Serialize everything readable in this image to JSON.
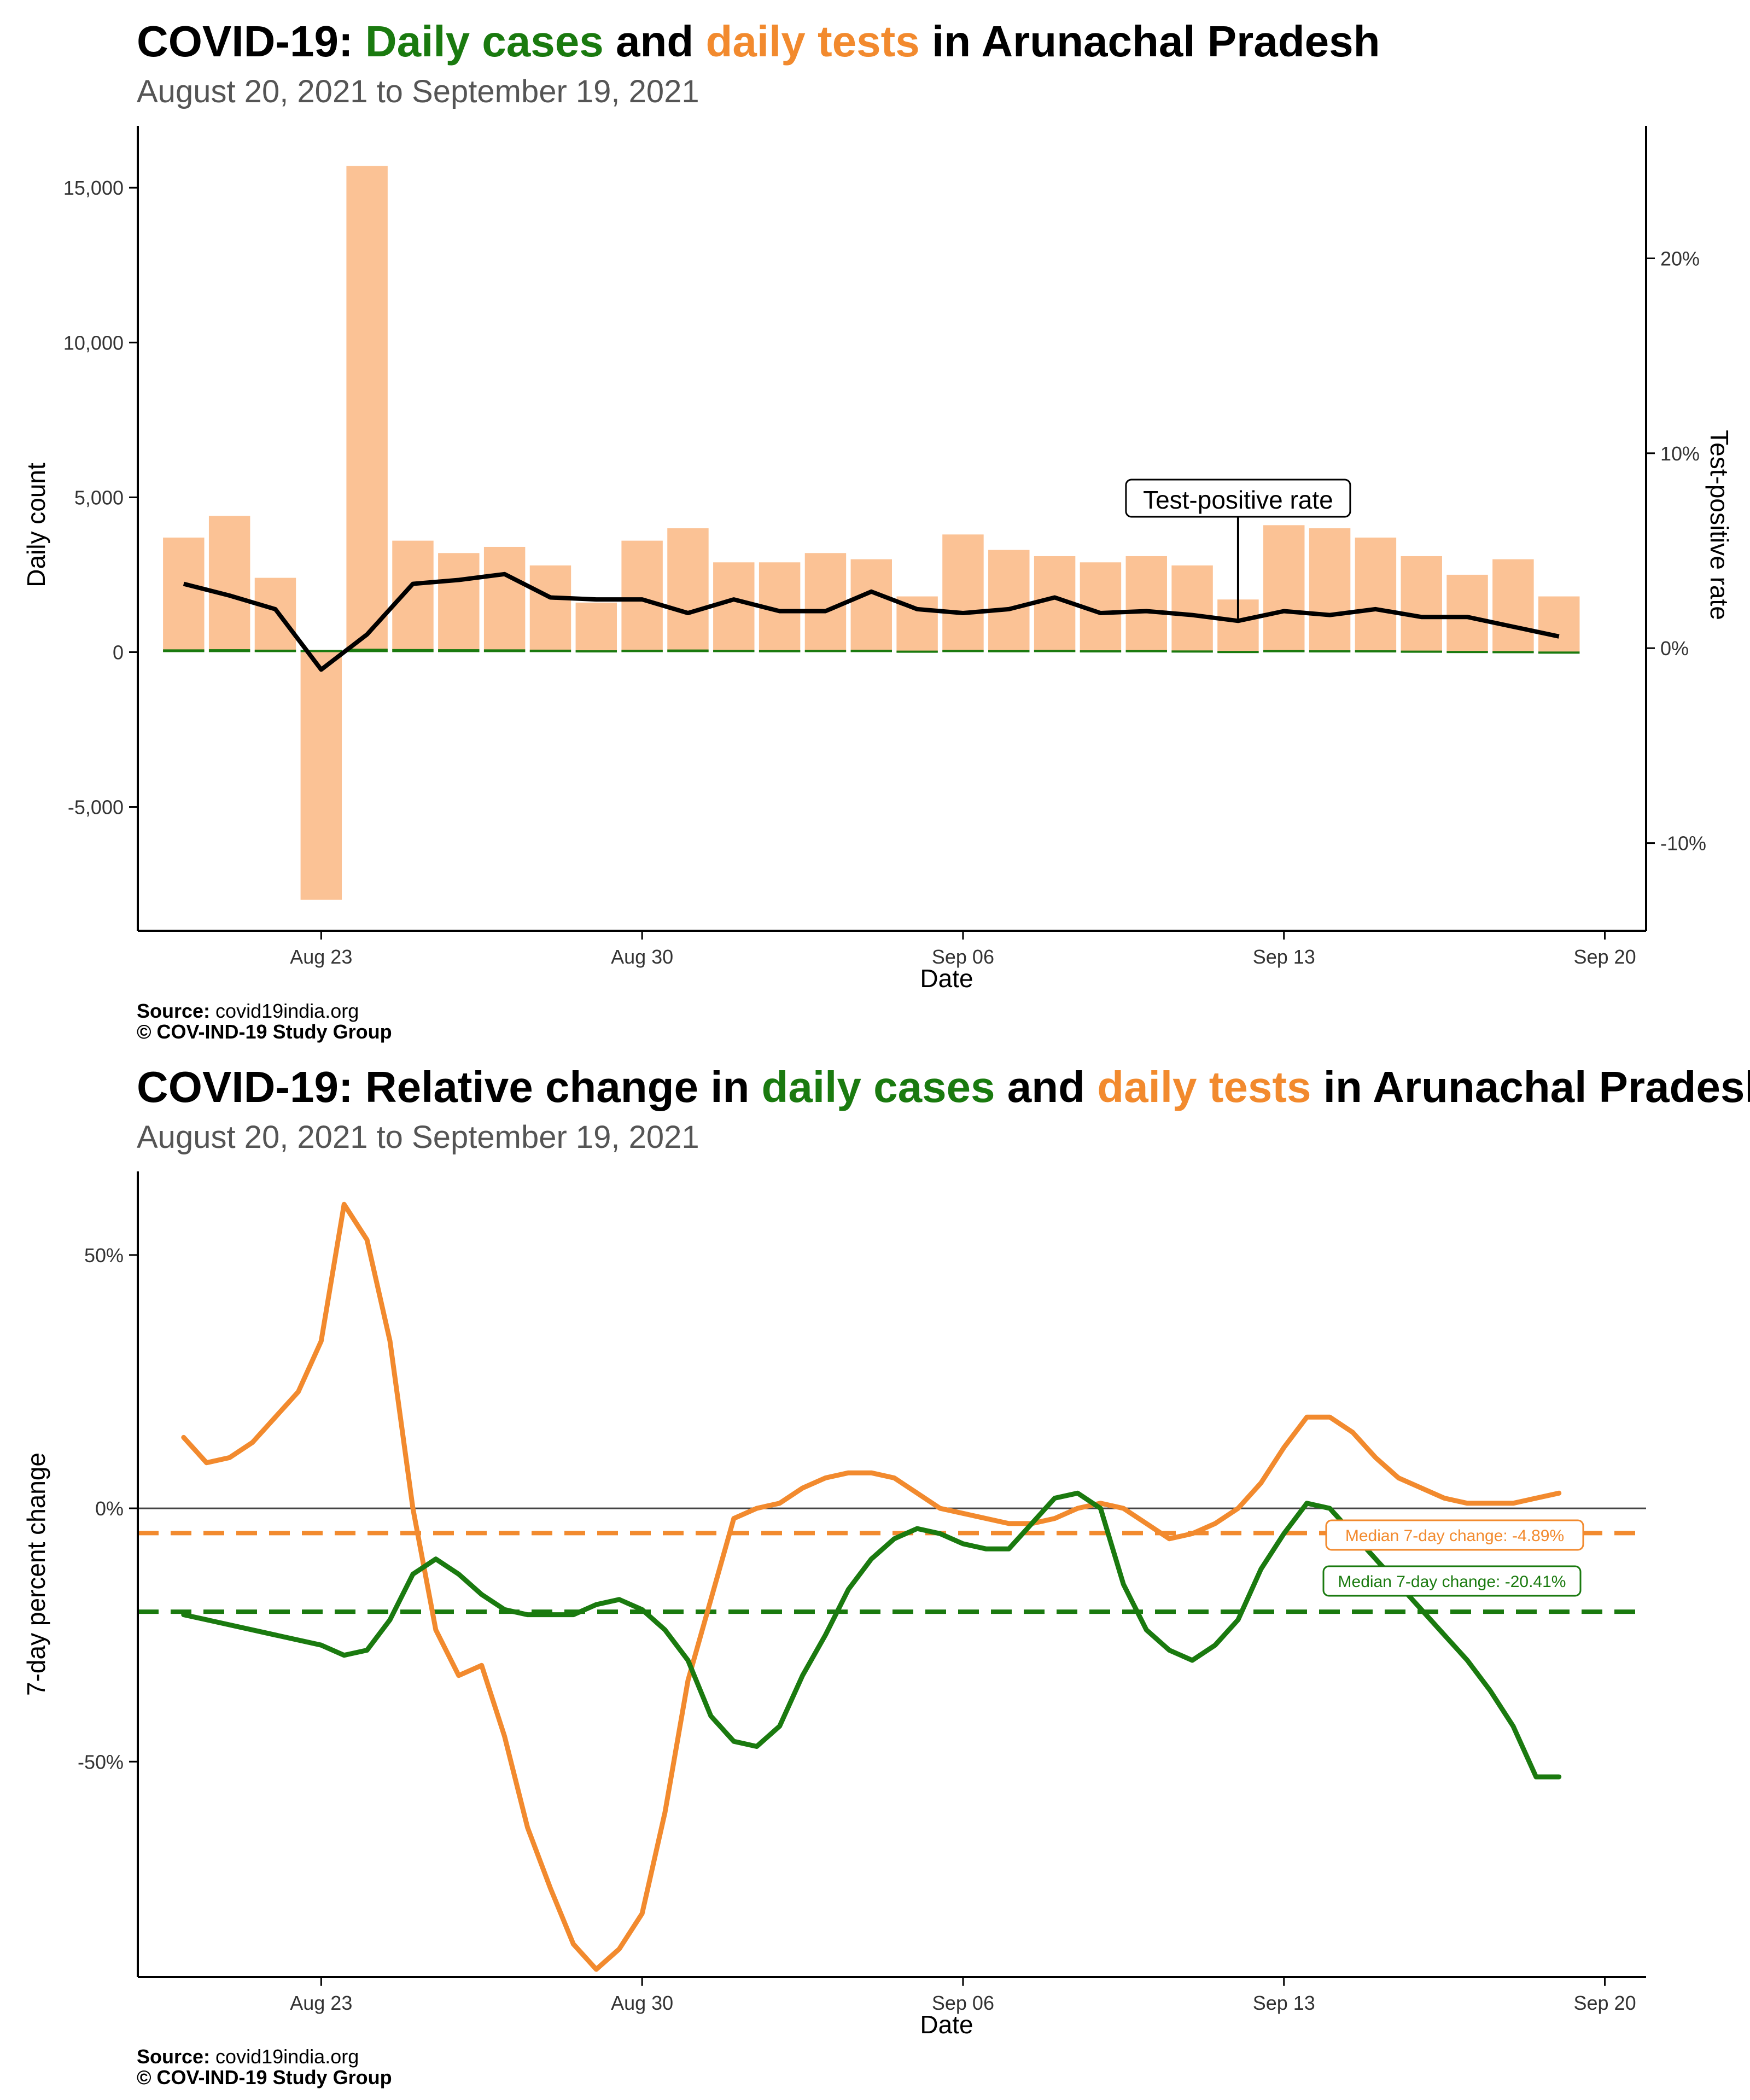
{
  "chart_data": [
    {
      "type": "bar",
      "title_parts": [
        "COVID-19: ",
        "Daily cases",
        " and ",
        "daily tests",
        " in Arunachal Pradesh"
      ],
      "subtitle": "August 20, 2021 to September 19, 2021",
      "xlabel": "Date",
      "ylabel": "Daily count",
      "ylabel_right": "Test-positive rate",
      "x_ticks": [
        "Aug 23",
        "Aug 30",
        "Sep 06",
        "Sep 13",
        "Sep 20"
      ],
      "x_tick_days": [
        23,
        30,
        37,
        44,
        51
      ],
      "y_ticks": [
        -5000,
        0,
        5000,
        10000,
        15000
      ],
      "y_tick_labels": [
        "-5,000",
        "0",
        "5,000",
        "10,000",
        "15,000"
      ],
      "y2_ticks": [
        -0.1,
        0,
        0.1,
        0.2
      ],
      "y2_tick_labels": [
        "-10%",
        "0%",
        "10%",
        "20%"
      ],
      "ylim": [
        -9000,
        17000
      ],
      "y2lim": [
        -0.145,
        0.268
      ],
      "xlim": [
        19.0,
        51.9
      ],
      "dates": [
        "Aug 20",
        "Aug 21",
        "Aug 22",
        "Aug 23",
        "Aug 24",
        "Aug 25",
        "Aug 26",
        "Aug 27",
        "Aug 28",
        "Aug 29",
        "Aug 30",
        "Aug 31",
        "Sep 01",
        "Sep 02",
        "Sep 03",
        "Sep 04",
        "Sep 05",
        "Sep 06",
        "Sep 07",
        "Sep 08",
        "Sep 09",
        "Sep 10",
        "Sep 11",
        "Sep 12",
        "Sep 13",
        "Sep 14",
        "Sep 15",
        "Sep 16",
        "Sep 17",
        "Sep 18",
        "Sep 19"
      ],
      "series": [
        {
          "name": "Daily tests",
          "color": "#fbc295",
          "values": [
            3700,
            4400,
            2400,
            -8000,
            15700,
            3600,
            3200,
            3400,
            2800,
            1600,
            3600,
            4000,
            2900,
            2900,
            3200,
            3000,
            1800,
            3800,
            3300,
            3100,
            2900,
            3100,
            2800,
            1700,
            4100,
            4000,
            3700,
            3100,
            2500,
            3000,
            1800
          ]
        },
        {
          "name": "Daily cases",
          "color": "#1a7a0f",
          "values": [
            90,
            95,
            80,
            70,
            110,
            100,
            95,
            90,
            80,
            60,
            75,
            85,
            70,
            65,
            70,
            75,
            50,
            70,
            65,
            70,
            60,
            65,
            55,
            40,
            65,
            60,
            60,
            50,
            40,
            35,
            20
          ]
        },
        {
          "name": "Test-positive rate",
          "color": "#000000",
          "values": [
            0.033,
            0.027,
            0.02,
            -0.011,
            0.007,
            0.033,
            0.035,
            0.038,
            0.026,
            0.025,
            0.025,
            0.018,
            0.025,
            0.019,
            0.019,
            0.029,
            0.02,
            0.018,
            0.02,
            0.026,
            0.018,
            0.019,
            0.017,
            0.014,
            0.019,
            0.017,
            0.02,
            0.016,
            0.016,
            0.011,
            0.006
          ]
        }
      ],
      "annotation": "Test-positive rate",
      "annotation_day": 43
    },
    {
      "type": "line",
      "title_parts": [
        "COVID-19: Relative change in ",
        "daily cases",
        " and ",
        "daily tests",
        " in Arunachal Pradesh"
      ],
      "subtitle": "August 20, 2021 to September 19, 2021",
      "xlabel": "Date",
      "ylabel": "7-day percent change",
      "x_ticks": [
        "Aug 23",
        "Aug 30",
        "Sep 06",
        "Sep 13",
        "Sep 20"
      ],
      "x_tick_days": [
        23,
        30,
        37,
        44,
        51
      ],
      "y_ticks": [
        -0.5,
        0,
        0.5
      ],
      "y_tick_labels": [
        "-50%",
        "0%",
        "50%"
      ],
      "ylim": [
        -0.925,
        0.665
      ],
      "xlim": [
        19.0,
        51.9
      ],
      "series": [
        {
          "name": "Daily tests",
          "color": "#f28a2e",
          "x": [
            20,
            20.5,
            21,
            21.5,
            22,
            22.5,
            23,
            23.5,
            24,
            24.5,
            25,
            25.5,
            26,
            26.5,
            27,
            27.5,
            28,
            28.5,
            29,
            29.5,
            30,
            30.5,
            31,
            31.5,
            32,
            32.5,
            33,
            33.5,
            34,
            34.5,
            35,
            35.5,
            36,
            36.5,
            37,
            37.5,
            38,
            38.5,
            39,
            39.5,
            40,
            40.5,
            41,
            41.5,
            42,
            42.5,
            43,
            43.5,
            44,
            44.5,
            45,
            45.5,
            46,
            46.5,
            47,
            47.5,
            48,
            48.5,
            49,
            49.5,
            50
          ],
          "values": [
            0.14,
            0.09,
            0.1,
            0.13,
            0.18,
            0.23,
            0.33,
            0.6,
            0.53,
            0.33,
            0.0,
            -0.24,
            -0.33,
            -0.31,
            -0.45,
            -0.63,
            -0.75,
            -0.86,
            -0.91,
            -0.87,
            -0.8,
            -0.6,
            -0.34,
            -0.18,
            -0.02,
            0.0,
            0.01,
            0.04,
            0.06,
            0.07,
            0.07,
            0.06,
            0.03,
            0.0,
            -0.01,
            -0.02,
            -0.03,
            -0.03,
            -0.02,
            0.0,
            0.01,
            0.0,
            -0.03,
            -0.06,
            -0.05,
            -0.03,
            0.0,
            0.05,
            0.12,
            0.18,
            0.18,
            0.15,
            0.1,
            0.06,
            0.04,
            0.02,
            0.01,
            0.01,
            0.01,
            0.02,
            0.03
          ]
        },
        {
          "name": "Daily cases",
          "color": "#1a7a0f",
          "x": [
            20,
            21,
            22,
            23,
            23.5,
            24,
            24.5,
            25,
            25.5,
            26,
            26.5,
            27,
            27.5,
            28,
            28.5,
            29,
            29.5,
            30,
            30.5,
            31,
            31.5,
            32,
            32.5,
            33,
            33.5,
            34,
            34.5,
            35,
            35.5,
            36,
            36.5,
            37,
            37.5,
            38,
            38.5,
            39,
            39.5,
            40,
            40.5,
            41,
            41.5,
            42,
            42.5,
            43,
            43.5,
            44,
            44.5,
            45,
            45.5,
            46,
            46.5,
            47,
            47.5,
            48,
            48.5,
            49,
            49.5,
            50
          ],
          "values": [
            -0.21,
            -0.23,
            -0.25,
            -0.27,
            -0.29,
            -0.28,
            -0.22,
            -0.13,
            -0.1,
            -0.13,
            -0.17,
            -0.2,
            -0.21,
            -0.21,
            -0.21,
            -0.19,
            -0.18,
            -0.2,
            -0.24,
            -0.3,
            -0.41,
            -0.46,
            -0.47,
            -0.43,
            -0.33,
            -0.25,
            -0.16,
            -0.1,
            -0.06,
            -0.04,
            -0.05,
            -0.07,
            -0.08,
            -0.08,
            -0.03,
            0.02,
            0.03,
            0.0,
            -0.15,
            -0.24,
            -0.28,
            -0.3,
            -0.27,
            -0.22,
            -0.12,
            -0.05,
            0.01,
            0.0,
            -0.05,
            -0.1,
            -0.15,
            -0.2,
            -0.25,
            -0.3,
            -0.36,
            -0.43,
            -0.53,
            -0.53
          ]
        }
      ],
      "reference_lines": [
        {
          "label": "Median 7-day change: -4.89%",
          "value": -0.0489,
          "color": "#f28a2e"
        },
        {
          "label": "Median 7-day change: -20.41%",
          "value": -0.2041,
          "color": "#1a7a0f"
        }
      ]
    }
  ],
  "source_label": "Source:",
  "source_value": " covid19india.org",
  "copyright": "© COV-IND-19 Study Group"
}
